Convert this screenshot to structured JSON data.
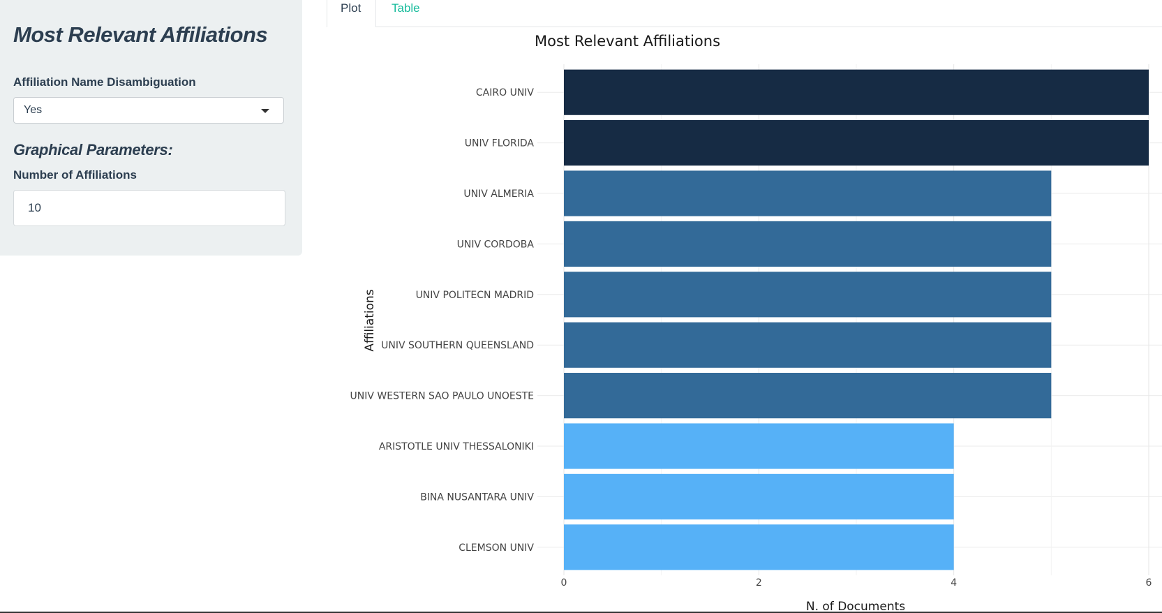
{
  "sidebar": {
    "title": "Most Relevant Affiliations",
    "disambiguation_label": "Affiliation Name Disambiguation",
    "disambiguation_value": "Yes",
    "graphical_heading": "Graphical Parameters:",
    "number_label": "Number of Affiliations",
    "number_value": "10"
  },
  "tabs": {
    "plot": "Plot",
    "table": "Table"
  },
  "colors": {
    "sidebar_bg": "#ecf0f1",
    "text": "#2c3e50",
    "accent": "#18bc9c",
    "bar_high": "#162b44",
    "bar_mid": "#336a98",
    "bar_low": "#56b1f7"
  },
  "chart_data": {
    "type": "bar",
    "orientation": "horizontal",
    "title": "Most Relevant Affiliations",
    "xlabel": "N. of Documents",
    "ylabel": "Affiliations",
    "categories": [
      "CAIRO UNIV",
      "UNIV FLORIDA",
      "UNIV ALMERIA",
      "UNIV CORDOBA",
      "UNIV POLITECN MADRID",
      "UNIV SOUTHERN QUEENSLAND",
      "UNIV WESTERN SAO PAULO UNOESTE",
      "ARISTOTLE UNIV THESSALONIKI",
      "BINA NUSANTARA UNIV",
      "CLEMSON UNIV"
    ],
    "values": [
      6,
      6,
      5,
      5,
      5,
      5,
      5,
      4,
      4,
      4
    ],
    "xlim": [
      0,
      6
    ],
    "xticks": [
      0,
      2,
      4,
      6
    ],
    "grid": true,
    "legend": "none"
  }
}
